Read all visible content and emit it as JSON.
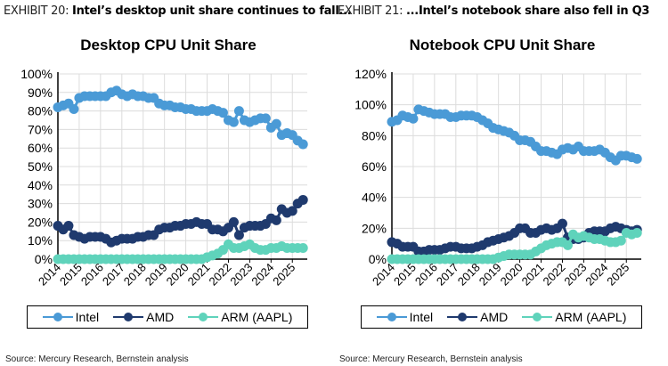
{
  "colors": {
    "Intel": "#4a9ad6",
    "AMD": "#1f3a6e",
    "ARM (AAPL)": "#5fd3bb",
    "grid": "#dcdcdc"
  },
  "panels": [
    {
      "exhibit_num": "EXHIBIT 20:",
      "exhibit_head": "Intel’s desktop unit share continues to fall...",
      "source": "Source: Mercury Research, Bernstein analysis"
    },
    {
      "exhibit_num": "EXHIBIT 21:",
      "exhibit_head": "...Intel’s notebook share also fell in Q3",
      "source": "Source: Mercury Research, Bernstein analysis"
    }
  ],
  "chart_data": [
    {
      "type": "line",
      "title": "Desktop CPU Unit Share",
      "xlabel": "",
      "ylabel": "",
      "x_start": 2014,
      "x_step": 0.25,
      "xticks": [
        "2014",
        "2015",
        "2016",
        "2017",
        "2018",
        "2019",
        "2020",
        "2021",
        "2022",
        "2023",
        "2024",
        "2025"
      ],
      "yticks": [
        "0%",
        "10%",
        "20%",
        "30%",
        "40%",
        "50%",
        "60%",
        "70%",
        "80%",
        "90%",
        "100%"
      ],
      "ylim": [
        0,
        100
      ],
      "xlim": [
        2014,
        2025.7
      ],
      "grid": true,
      "legend": "bottom",
      "markers": true,
      "series": [
        {
          "name": "Intel",
          "values": [
            82,
            83,
            84,
            81,
            87,
            88,
            88,
            88,
            88,
            88,
            90,
            91,
            89,
            88,
            89,
            88,
            88,
            87,
            87,
            84,
            83,
            83,
            82,
            82,
            81,
            81,
            80,
            80,
            80,
            81,
            80,
            79,
            75,
            74,
            80,
            75,
            74,
            75,
            76,
            76,
            71,
            73,
            67,
            68,
            67,
            64,
            62
          ]
        },
        {
          "name": "AMD",
          "values": [
            18,
            16,
            18,
            13,
            12,
            11,
            12,
            12,
            12,
            11,
            9,
            10,
            11,
            11,
            11,
            12,
            12,
            13,
            13,
            16,
            17,
            17,
            18,
            18,
            19,
            19,
            20,
            19,
            19,
            16,
            16,
            15,
            17,
            20,
            13,
            17,
            18,
            18,
            18,
            19,
            22,
            21,
            27,
            25,
            26,
            30,
            32
          ]
        },
        {
          "name": "ARM (AAPL)",
          "values": [
            0,
            0,
            0,
            0,
            0,
            0,
            0,
            0,
            0,
            0,
            0,
            0,
            0,
            0,
            0,
            0,
            0,
            0,
            0,
            0,
            0,
            0,
            0,
            0,
            0,
            0,
            0,
            0,
            1,
            2,
            3,
            5,
            8,
            6,
            6,
            7,
            8,
            6,
            5,
            5,
            6,
            6,
            7,
            6,
            6,
            6,
            6
          ]
        }
      ]
    },
    {
      "type": "line",
      "title": "Notebook CPU Unit Share",
      "xlabel": "",
      "ylabel": "",
      "x_start": 2014,
      "x_step": 0.25,
      "xticks": [
        "2014",
        "2015",
        "2016",
        "2017",
        "2018",
        "2019",
        "2020",
        "2021",
        "2022",
        "2023",
        "2024",
        "2025"
      ],
      "yticks": [
        "0%",
        "20%",
        "40%",
        "60%",
        "80%",
        "100%",
        "120%"
      ],
      "ylim": [
        0,
        120
      ],
      "xlim": [
        2014,
        2025.7
      ],
      "grid": true,
      "legend": "bottom",
      "markers": true,
      "series": [
        {
          "name": "Intel",
          "values": [
            89,
            90,
            93,
            92,
            91,
            97,
            96,
            95,
            94,
            94,
            94,
            92,
            92,
            93,
            93,
            93,
            92,
            90,
            88,
            85,
            84,
            83,
            82,
            80,
            77,
            77,
            76,
            73,
            70,
            70,
            69,
            68,
            71,
            72,
            71,
            73,
            70,
            70,
            70,
            71,
            69,
            66,
            64,
            67,
            67,
            66,
            65
          ]
        },
        {
          "name": "AMD",
          "values": [
            11,
            10,
            8,
            8,
            8,
            5,
            5,
            6,
            6,
            6,
            7,
            8,
            8,
            7,
            7,
            7,
            8,
            9,
            11,
            12,
            13,
            14,
            15,
            17,
            20,
            20,
            17,
            17,
            19,
            20,
            19,
            20,
            23,
            14,
            13,
            13,
            14,
            17,
            18,
            18,
            18,
            20,
            21,
            20,
            19,
            18,
            19
          ]
        },
        {
          "name": "ARM (AAPL)",
          "values": [
            0,
            0,
            0,
            0,
            0,
            0,
            0,
            0,
            0,
            0,
            0,
            0,
            0,
            0,
            0,
            0,
            0,
            0,
            0,
            0,
            1,
            2,
            3,
            3,
            3,
            3,
            3,
            5,
            7,
            9,
            10,
            11,
            11,
            9,
            16,
            14,
            15,
            14,
            13,
            13,
            12,
            11,
            11,
            12,
            17,
            16,
            17
          ]
        }
      ]
    }
  ]
}
